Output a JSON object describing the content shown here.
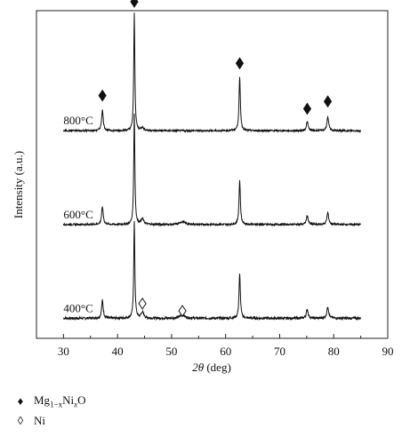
{
  "chart_data": {
    "type": "line",
    "xlabel_symbol": "2θ",
    "xlabel_unit": "(deg)",
    "ylabel": "Intensity (a.u.)",
    "xlim": [
      25,
      90
    ],
    "xticks": [
      "30",
      "40",
      "50",
      "60",
      "70",
      "80",
      "90"
    ],
    "grid": false,
    "series": [
      {
        "name": "400°C",
        "baseline": 0.02,
        "noise": 0.004,
        "peaks": [
          {
            "x": 37.2,
            "h": 0.06,
            "w": 0.18
          },
          {
            "x": 43.1,
            "h": 0.33,
            "w": 0.12
          },
          {
            "x": 44.6,
            "h": 0.02,
            "w": 0.3
          },
          {
            "x": 52.0,
            "h": 0.012,
            "w": 0.5
          },
          {
            "x": 62.6,
            "h": 0.15,
            "w": 0.15
          },
          {
            "x": 75.1,
            "h": 0.03,
            "w": 0.2
          },
          {
            "x": 78.9,
            "h": 0.04,
            "w": 0.2
          }
        ]
      },
      {
        "name": "600°C",
        "baseline": 0.34,
        "noise": 0.003,
        "peaks": [
          {
            "x": 37.2,
            "h": 0.06,
            "w": 0.18
          },
          {
            "x": 43.1,
            "h": 0.38,
            "w": 0.12
          },
          {
            "x": 44.6,
            "h": 0.018,
            "w": 0.3
          },
          {
            "x": 52.0,
            "h": 0.01,
            "w": 0.5
          },
          {
            "x": 62.6,
            "h": 0.15,
            "w": 0.15
          },
          {
            "x": 75.1,
            "h": 0.03,
            "w": 0.2
          },
          {
            "x": 78.9,
            "h": 0.04,
            "w": 0.2
          }
        ]
      },
      {
        "name": "800°C",
        "baseline": 0.66,
        "noise": 0.003,
        "peaks": [
          {
            "x": 37.2,
            "h": 0.07,
            "w": 0.18
          },
          {
            "x": 43.1,
            "h": 0.4,
            "w": 0.12
          },
          {
            "x": 44.6,
            "h": 0.01,
            "w": 0.3
          },
          {
            "x": 62.6,
            "h": 0.18,
            "w": 0.15
          },
          {
            "x": 75.1,
            "h": 0.03,
            "w": 0.2
          },
          {
            "x": 78.9,
            "h": 0.045,
            "w": 0.2
          }
        ]
      }
    ],
    "markers": [
      {
        "x": 37.2,
        "y": 0.78,
        "symbol": "♦",
        "filled": true
      },
      {
        "x": 43.1,
        "y": 1.1,
        "symbol": "♦",
        "filled": true
      },
      {
        "x": 62.6,
        "y": 0.89,
        "symbol": "♦",
        "filled": true
      },
      {
        "x": 75.1,
        "y": 0.735,
        "symbol": "♦",
        "filled": true
      },
      {
        "x": 78.9,
        "y": 0.76,
        "symbol": "♦",
        "filled": true
      },
      {
        "x": 44.6,
        "y": 0.07,
        "symbol": "◊",
        "filled": false
      },
      {
        "x": 52.0,
        "y": 0.045,
        "symbol": "◊",
        "filled": false
      }
    ],
    "legend": {
      "placement": "below-left",
      "entries": [
        {
          "symbol": "♦",
          "parts": [
            "Mg",
            "1−x",
            "Ni",
            "x",
            "O"
          ]
        },
        {
          "symbol": "◊",
          "parts": [
            "Ni"
          ]
        }
      ]
    },
    "colors": {
      "line": "#111111",
      "axis": "#222222"
    }
  }
}
